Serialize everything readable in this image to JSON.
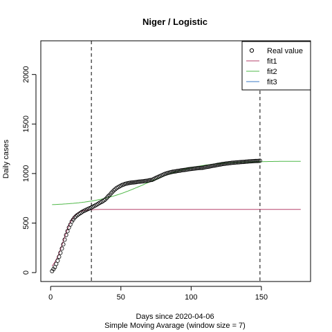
{
  "chart_data": {
    "type": "line",
    "title": "Niger / Logistic",
    "xlabel": "Days since 2020-04-06",
    "xlabel2": "Simple Moving Avarage (window size = 7)",
    "ylabel": "Daily cases",
    "xlim": [
      -7,
      185
    ],
    "ylim": [
      -90,
      2340
    ],
    "xticks": [
      0,
      50,
      100,
      150
    ],
    "yticks": [
      0,
      500,
      1000,
      1500,
      2000
    ],
    "vlines": [
      29,
      149
    ],
    "legend": {
      "position": "top-right",
      "entries": [
        {
          "label": "Real value",
          "kind": "point",
          "color": "#000000"
        },
        {
          "label": "fit1",
          "kind": "line",
          "color": "#b5416b"
        },
        {
          "label": "fit2",
          "kind": "line",
          "color": "#4fb848"
        },
        {
          "label": "fit3",
          "kind": "line",
          "color": "#3979c6"
        }
      ]
    },
    "real_value_anchors": [
      [
        1,
        15
      ],
      [
        3,
        55
      ],
      [
        5,
        120
      ],
      [
        7,
        200
      ],
      [
        9,
        285
      ],
      [
        11,
        380
      ],
      [
        13,
        455
      ],
      [
        15,
        515
      ],
      [
        17,
        555
      ],
      [
        19,
        580
      ],
      [
        21,
        600
      ],
      [
        23,
        618
      ],
      [
        25,
        632
      ],
      [
        27,
        645
      ],
      [
        29,
        657
      ],
      [
        31,
        672
      ],
      [
        33,
        688
      ],
      [
        35,
        705
      ],
      [
        37,
        720
      ],
      [
        39,
        740
      ],
      [
        41,
        770
      ],
      [
        43,
        800
      ],
      [
        45,
        830
      ],
      [
        47,
        855
      ],
      [
        49,
        870
      ],
      [
        51,
        885
      ],
      [
        53,
        895
      ],
      [
        55,
        902
      ],
      [
        57,
        908
      ],
      [
        60,
        912
      ],
      [
        63,
        918
      ],
      [
        66,
        922
      ],
      [
        69,
        928
      ],
      [
        72,
        936
      ],
      [
        75,
        955
      ],
      [
        78,
        975
      ],
      [
        81,
        995
      ],
      [
        84,
        1008
      ],
      [
        87,
        1018
      ],
      [
        90,
        1025
      ],
      [
        93,
        1032
      ],
      [
        96,
        1038
      ],
      [
        99,
        1045
      ],
      [
        102,
        1050
      ],
      [
        105,
        1055
      ],
      [
        108,
        1058
      ],
      [
        111,
        1066
      ],
      [
        114,
        1074
      ],
      [
        117,
        1082
      ],
      [
        120,
        1090
      ],
      [
        123,
        1097
      ],
      [
        126,
        1103
      ],
      [
        129,
        1108
      ],
      [
        132,
        1112
      ],
      [
        135,
        1115
      ],
      [
        138,
        1118
      ],
      [
        141,
        1122
      ],
      [
        144,
        1125
      ],
      [
        147,
        1127
      ],
      [
        149,
        1129
      ]
    ],
    "fit1": {
      "L": 638,
      "k": 0.27,
      "x0": 9
    },
    "fit2": {
      "base": 675,
      "L": 450,
      "k": 0.055,
      "x0": 68,
      "x_from": 1,
      "x_to": 178
    },
    "fit3": null
  }
}
